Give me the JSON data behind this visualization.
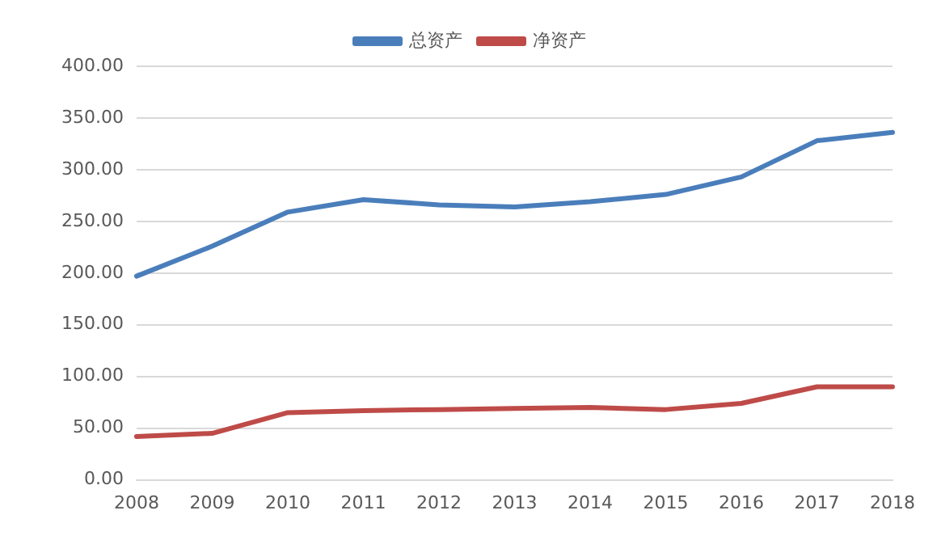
{
  "chart_data": {
    "type": "line",
    "categories": [
      "2008",
      "2009",
      "2010",
      "2011",
      "2012",
      "2013",
      "2014",
      "2015",
      "2016",
      "2017",
      "2018"
    ],
    "series": [
      {
        "name": "总资产",
        "color": "#4a7ebb",
        "values": [
          197,
          226,
          259,
          271,
          266,
          264,
          269,
          276,
          293,
          328,
          336
        ]
      },
      {
        "name": "净资产",
        "color": "#be4b48",
        "values": [
          42,
          45,
          65,
          67,
          68,
          69,
          70,
          68,
          74,
          90,
          90
        ]
      }
    ],
    "ylim": [
      0,
      400
    ],
    "yticks": [
      {
        "value": 0,
        "label": "0.00"
      },
      {
        "value": 50,
        "label": "50.00"
      },
      {
        "value": 100,
        "label": "100.00"
      },
      {
        "value": 150,
        "label": "150.00"
      },
      {
        "value": 200,
        "label": "200.00"
      },
      {
        "value": 250,
        "label": "250.00"
      },
      {
        "value": 300,
        "label": "300.00"
      },
      {
        "value": 350,
        "label": "350.00"
      },
      {
        "value": 400,
        "label": "400.00"
      }
    ],
    "grid": "y",
    "legend": "top",
    "marker": "none",
    "line_style": "solid"
  }
}
